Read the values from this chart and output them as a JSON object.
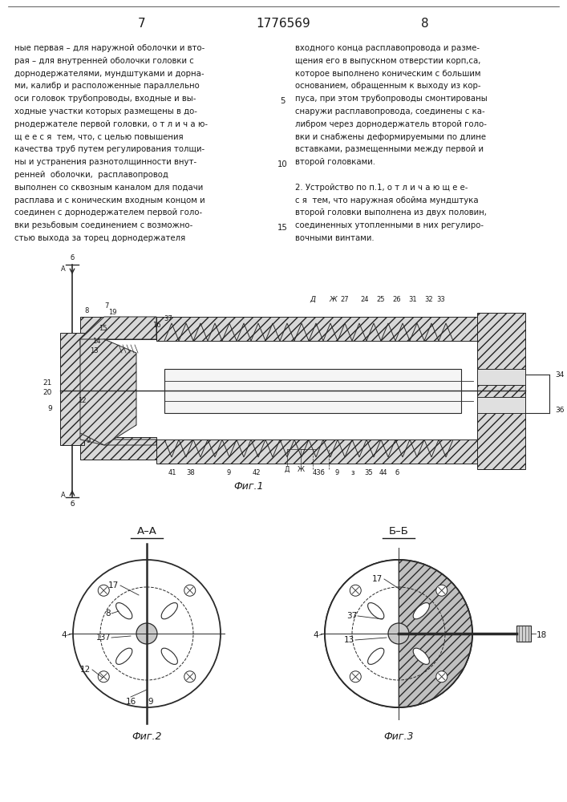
{
  "page_number_left": "7",
  "patent_number": "1776569",
  "page_number_right": "8",
  "background_color": "#ffffff",
  "text_color": "#1a1a1a",
  "line_color": "#2a2a2a",
  "left_column_text": [
    "ные первая – для наружной оболочки и вто-",
    "рая – для внутренней оболочки головки с",
    "дорнодержателями, мундштуками и дорна-",
    "ми, калибр и расположенные параллельно",
    "оси головок трубопроводы, входные и вы-",
    "ходные участки которых размещены в до-",
    "рнодержателе первой головки, о т л и ч а ю-",
    "щ е е с я  тем, что, с целью повышения",
    "качества труб путем регулирования толщи-",
    "ны и устранения разнотолщинности внут-",
    "ренней  оболочки,  расплавопровод",
    "выполнен со сквозным каналом для подачи",
    "расплава и с коническим входным концом и",
    "соединен с дорнодержателем первой голо-",
    "вки резьбовым соединением с возможно-",
    "стью выхода за торец дорнодержателя"
  ],
  "right_column_text": [
    "входного конца расплавопровода и разме-",
    "щения его в выпускном отверстии корп,са,",
    "которое выполнено коническим с большим",
    "основанием, обращенным к выходу из кор-",
    "пуса, при этом трубопроводы смонтированы",
    "снаружи расплавопровода, соединены с ка-",
    "либром через дорнодержатель второй голо-",
    "вки и снабжены деформируемыми по длине",
    "вставками, размещенными между первой и",
    "второй головками.",
    "",
    "2. Устройство по п.1, о т л и ч а ю щ е е-",
    "с я  тем, что наружная обойма мундштука",
    "второй головки выполнена из двух половин,",
    "соединенных утопленными в них регулиро-",
    "вочными винтами."
  ],
  "line_numbers_indices": [
    4,
    9,
    14
  ],
  "line_numbers_values": [
    "5",
    "10",
    "15"
  ]
}
